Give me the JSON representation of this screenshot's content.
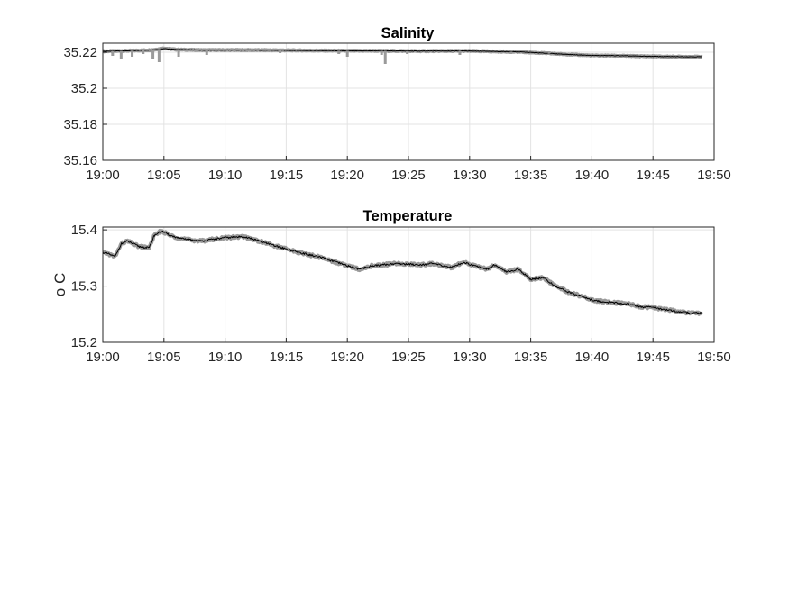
{
  "colors": {
    "raw": "#9a9a9a",
    "smoothed": "#000000",
    "grid": "#e3e3e3",
    "axis": "#262626"
  },
  "chart_data": [
    {
      "type": "line",
      "title": "Salinity",
      "xlabel": "",
      "ylabel": "",
      "x_ticks": [
        "19:00",
        "19:05",
        "19:10",
        "19:15",
        "19:20",
        "19:25",
        "19:30",
        "19:35",
        "19:40",
        "19:45",
        "19:50"
      ],
      "xlim": [
        0,
        50
      ],
      "x_unit": "minutes after 19:00",
      "y_ticks": [
        "35.16",
        "35.18",
        "35.2",
        "35.22"
      ],
      "ylim": [
        35.16,
        35.225
      ],
      "grid": true,
      "series": [
        {
          "style": "raw",
          "x": [
            0,
            2,
            4,
            5,
            6,
            8,
            10,
            12,
            14,
            16,
            18,
            20,
            22,
            24,
            26,
            28,
            30,
            32,
            34,
            36,
            38,
            40,
            42,
            44,
            46,
            48,
            49
          ],
          "y": [
            35.2205,
            35.2208,
            35.2212,
            35.2222,
            35.2215,
            35.2212,
            35.2212,
            35.2212,
            35.2211,
            35.221,
            35.2209,
            35.2208,
            35.2208,
            35.2207,
            35.2206,
            35.2207,
            35.2207,
            35.2204,
            35.2202,
            35.2195,
            35.2188,
            35.2182,
            35.2181,
            35.2178,
            35.2176,
            35.2175,
            35.2175
          ]
        },
        {
          "style": "smoothed",
          "x": [
            0,
            2,
            4,
            5,
            6,
            8,
            10,
            12,
            14,
            16,
            18,
            20,
            22,
            24,
            26,
            28,
            30,
            32,
            34,
            36,
            38,
            40,
            42,
            44,
            46,
            48,
            49
          ],
          "y": [
            35.2205,
            35.2208,
            35.2212,
            35.222,
            35.2215,
            35.2212,
            35.2212,
            35.2212,
            35.2211,
            35.221,
            35.2209,
            35.2208,
            35.2208,
            35.2207,
            35.2206,
            35.2207,
            35.2207,
            35.2204,
            35.2202,
            35.2195,
            35.2188,
            35.2182,
            35.2181,
            35.2178,
            35.2176,
            35.2175,
            35.2175
          ]
        }
      ],
      "outliers": {
        "x": [
          0.8,
          1.5,
          2.4,
          3.3,
          4.1,
          4.6,
          6.2,
          8.5,
          14.5,
          19.3,
          20.0,
          22.8,
          23.1,
          24.9,
          29.2,
          33.4,
          36.5
        ],
        "y": [
          35.218,
          35.2165,
          35.2175,
          35.219,
          35.2165,
          35.2145,
          35.2175,
          35.2185,
          35.2195,
          35.219,
          35.2175,
          35.2185,
          35.2135,
          35.219,
          35.2185,
          35.219,
          35.2188
        ]
      }
    },
    {
      "type": "line",
      "title": "Temperature",
      "xlabel": "",
      "ylabel": "o C",
      "x_ticks": [
        "19:00",
        "19:05",
        "19:10",
        "19:15",
        "19:20",
        "19:25",
        "19:30",
        "19:35",
        "19:40",
        "19:45",
        "19:50"
      ],
      "xlim": [
        0,
        50
      ],
      "x_unit": "minutes after 19:00",
      "y_ticks": [
        "15.2",
        "15.3",
        "15.4"
      ],
      "ylim": [
        15.2,
        15.405
      ],
      "grid": true,
      "series": [
        {
          "style": "raw",
          "x": [
            0,
            0.5,
            1,
            1.5,
            2,
            3,
            3.8,
            4.2,
            4.8,
            5.5,
            6.5,
            8,
            10,
            11.5,
            12.5,
            14,
            16,
            18,
            20,
            21,
            22,
            24,
            26,
            27,
            28.5,
            29.5,
            30.5,
            31.5,
            32,
            33,
            34,
            35,
            36,
            37,
            38,
            39,
            40,
            41,
            42,
            43,
            44,
            45,
            46,
            47,
            48,
            49
          ],
          "y": [
            15.36,
            15.357,
            15.352,
            15.375,
            15.38,
            15.37,
            15.368,
            15.39,
            15.398,
            15.39,
            15.384,
            15.38,
            15.386,
            15.388,
            15.382,
            15.372,
            15.36,
            15.35,
            15.336,
            15.33,
            15.336,
            15.34,
            15.338,
            15.34,
            15.333,
            15.342,
            15.336,
            15.33,
            15.338,
            15.325,
            15.33,
            15.312,
            15.315,
            15.3,
            15.29,
            15.283,
            15.275,
            15.272,
            15.27,
            15.268,
            15.263,
            15.262,
            15.258,
            15.255,
            15.252,
            15.252
          ]
        },
        {
          "style": "smoothed",
          "x": [
            0,
            0.5,
            1,
            1.5,
            2,
            3,
            3.8,
            4.2,
            4.8,
            5.5,
            6.5,
            8,
            10,
            11.5,
            12.5,
            14,
            16,
            18,
            20,
            21,
            22,
            24,
            26,
            27,
            28.5,
            29.5,
            30.5,
            31.5,
            32,
            33,
            34,
            35,
            36,
            37,
            38,
            39,
            40,
            41,
            42,
            43,
            44,
            45,
            46,
            47,
            48,
            49
          ],
          "y": [
            15.36,
            15.357,
            15.352,
            15.375,
            15.38,
            15.37,
            15.368,
            15.39,
            15.398,
            15.39,
            15.384,
            15.38,
            15.386,
            15.388,
            15.382,
            15.372,
            15.36,
            15.35,
            15.336,
            15.33,
            15.336,
            15.34,
            15.338,
            15.34,
            15.333,
            15.342,
            15.336,
            15.33,
            15.338,
            15.325,
            15.33,
            15.312,
            15.315,
            15.3,
            15.29,
            15.283,
            15.275,
            15.272,
            15.27,
            15.268,
            15.263,
            15.262,
            15.258,
            15.255,
            15.252,
            15.252
          ]
        }
      ]
    }
  ]
}
